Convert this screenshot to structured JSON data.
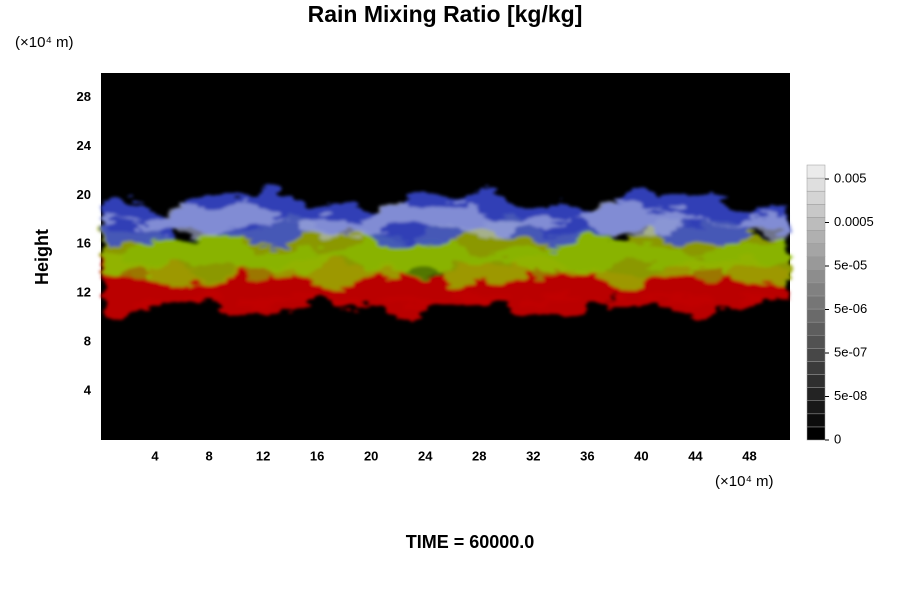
{
  "chart_data": {
    "type": "heatmap",
    "title": "Rain Mixing Ratio [kg/kg]",
    "ylabel": "Height",
    "y_unit": "(×10⁴ m)",
    "x_unit": "(×10⁴ m)",
    "xlim": [
      0,
      51
    ],
    "ylim": [
      0,
      30
    ],
    "xticks": [
      4,
      8,
      12,
      16,
      20,
      24,
      28,
      32,
      36,
      40,
      44,
      48
    ],
    "yticks": [
      4,
      8,
      12,
      16,
      20,
      24,
      28
    ],
    "colorbar_ticks": [
      0,
      {
        "value": 5e-08,
        "label": "5e-08"
      },
      {
        "value": 5e-07,
        "label": "5e-07"
      },
      {
        "value": 5e-06,
        "label": "5e-06"
      },
      {
        "value": 5e-05,
        "label": "5e-05"
      },
      0.0005,
      0.005
    ],
    "time_label": "TIME = 60000.0"
  }
}
